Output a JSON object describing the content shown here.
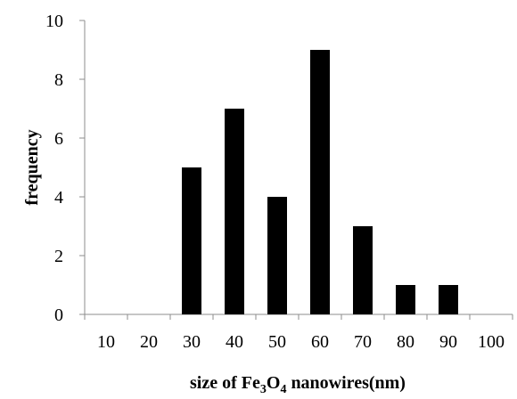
{
  "chart_data": {
    "type": "bar",
    "categories": [
      "10",
      "20",
      "30",
      "40",
      "50",
      "60",
      "70",
      "80",
      "90",
      "100"
    ],
    "values": [
      0,
      0,
      5,
      7,
      4,
      9,
      3,
      1,
      1,
      0
    ],
    "xlabel": {
      "prefix": "size of  Fe",
      "sub1": "3",
      "mid": "O",
      "sub2": "4",
      "suffix": " nanowires(nm)"
    },
    "ylabel": "frequency",
    "ylim": [
      0,
      10
    ],
    "yticks": [
      "0",
      "2",
      "4",
      "6",
      "8",
      "10"
    ],
    "grid": false,
    "legend": "none",
    "colors": {
      "bar": "#000000",
      "axis": "#8c8c8c",
      "text": "#000000"
    }
  }
}
